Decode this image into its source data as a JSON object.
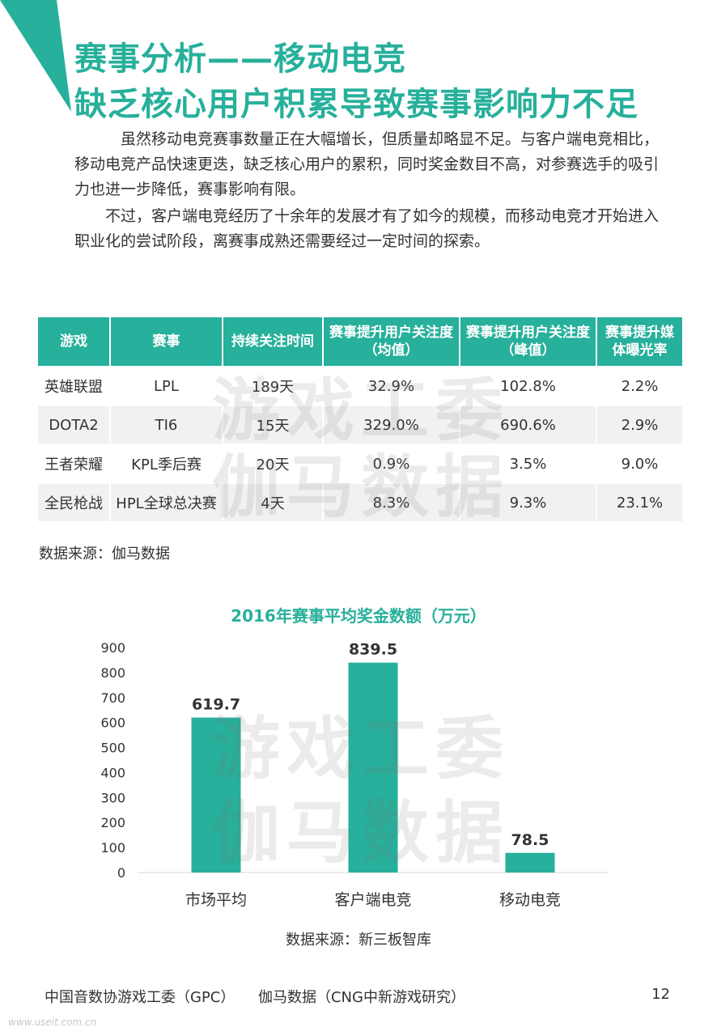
{
  "header": {
    "title_line1": "赛事分析——移动电竞",
    "title_line2": "缺乏核心用户积累导致赛事影响力不足"
  },
  "paragraphs": [
    "虽然移动电竞赛事数量正在大幅增长，但质量却略显不足。与客户端电竞相比，移动电竞产品快速更迭，缺乏核心用户的累积，同时奖金数目不高，对参赛选手的吸引力也进一步降低，赛事影响有限。",
    "不过，客户端电竞经历了十余年的发展才有了如今的规模，而移动电竞才开始进入职业化的尝试阶段，离赛事成熟还需要经过一定时间的探索。"
  ],
  "watermark": {
    "line1": "游戏工委",
    "line2": "伽马数据"
  },
  "table": {
    "headers": [
      "游戏",
      "赛事",
      "持续关注时间",
      "赛事提升用户关注度（均值）",
      "赛事提升用户关注度（峰值）",
      "赛事提升媒体曝光率"
    ],
    "rows": [
      [
        "英雄联盟",
        "LPL",
        "189天",
        "32.9%",
        "102.8%",
        "2.2%"
      ],
      [
        "DOTA2",
        "TI6",
        "15天",
        "329.0%",
        "690.6%",
        "2.9%"
      ],
      [
        "王者荣耀",
        "KPL季后赛",
        "20天",
        "0.9%",
        "3.5%",
        "9.0%"
      ],
      [
        "全民枪战",
        "HPL全球总决赛",
        "4天",
        "8.3%",
        "9.3%",
        "23.1%"
      ]
    ],
    "source": "数据来源：伽马数据"
  },
  "chart_data": {
    "type": "bar",
    "title": "2016年赛事平均奖金数额（万元）",
    "categories": [
      "市场平均",
      "客户端电竞",
      "移动电竞"
    ],
    "values": [
      619.7,
      839.5,
      78.5
    ],
    "data_labels": [
      "619.7",
      "839.5",
      "78.5"
    ],
    "ylim": [
      0,
      900
    ],
    "yticks": [
      0,
      100,
      200,
      300,
      400,
      500,
      600,
      700,
      800,
      900
    ],
    "xlabel": "",
    "ylabel": "",
    "grid": false,
    "bar_color": "#27b09b",
    "source": "数据来源：新三板智库"
  },
  "footer": {
    "org": "中国音数协游戏工委（GPC）     伽马数据（CNG中新游戏研究）",
    "page_number": "12",
    "site": "www.useit.com.cn"
  },
  "colors": {
    "accent": "#27b09b",
    "alt_row": "#f1f1f1"
  }
}
